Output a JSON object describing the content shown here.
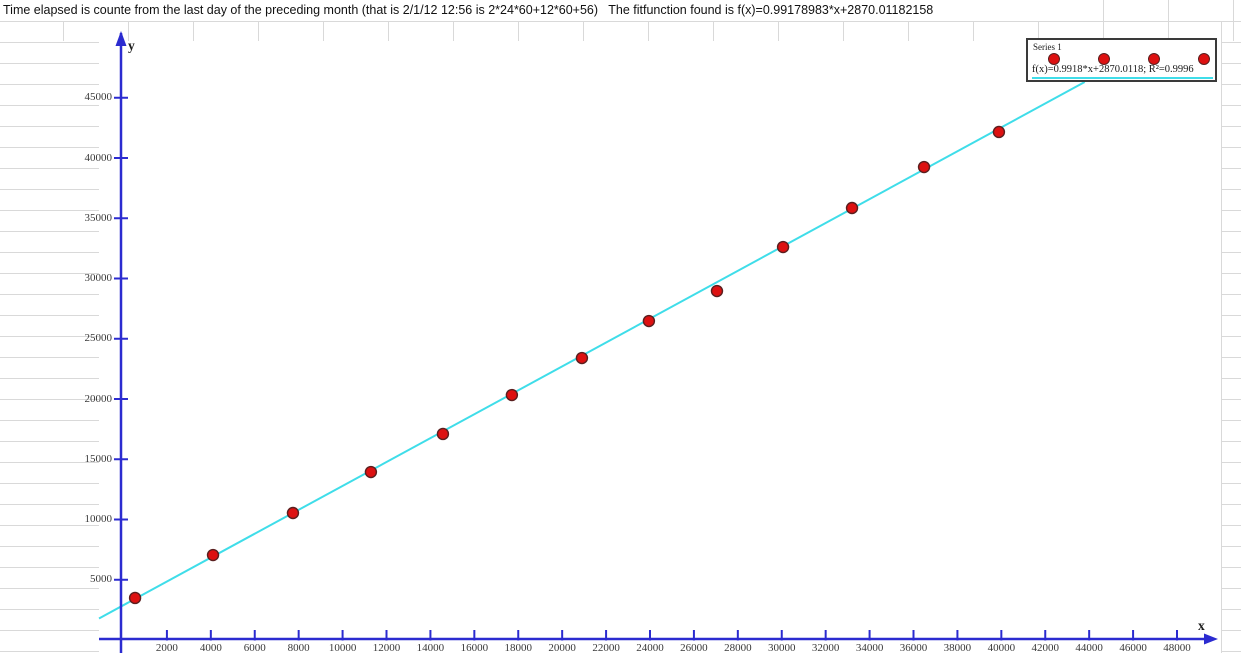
{
  "title": {
    "text": "Time elapsed is counte from the last day of the preceding month (that is 2/1/12 12:56 is 2*24*60+12*60+56)   The fitfunction found is f(x)=0.99178983*x+2870.01182158"
  },
  "legend": {
    "series_label": "Series 1",
    "fit_label": "f(x)=0.9918*x+2870.0118; R²=0.9996"
  },
  "chart_data": {
    "type": "scatter",
    "title": "",
    "xlabel": "x",
    "ylabel": "y",
    "xlim": [
      0,
      49600
    ],
    "ylim": [
      0,
      47500
    ],
    "x_ticks": [
      2000,
      4000,
      6000,
      8000,
      10000,
      12000,
      14000,
      16000,
      18000,
      20000,
      22000,
      24000,
      26000,
      28000,
      30000,
      32000,
      34000,
      36000,
      38000,
      40000,
      42000,
      44000,
      46000,
      48000
    ],
    "y_ticks": [
      5000,
      10000,
      15000,
      20000,
      25000,
      30000,
      35000,
      40000,
      45000
    ],
    "y_tick_labels_clipped_left": true,
    "grid": false,
    "legend_position": "top-right",
    "series": [
      {
        "name": "Series 1",
        "marker": "circle",
        "color": "#dd1111",
        "points": [
          [
            550,
            3490
          ],
          [
            4100,
            7050
          ],
          [
            7740,
            10540
          ],
          [
            11290,
            13940
          ],
          [
            14570,
            17100
          ],
          [
            17710,
            20330
          ],
          [
            20900,
            23400
          ],
          [
            23950,
            26470
          ],
          [
            27050,
            28960
          ],
          [
            30060,
            32610
          ],
          [
            33200,
            35850
          ],
          [
            36480,
            39250
          ],
          [
            39890,
            42160
          ]
        ]
      }
    ],
    "fit": {
      "equation": "f(x)=0.99178983*x+2870.01182158",
      "slope": 0.99178983,
      "intercept": 2870.01182158,
      "r_squared": 0.9996,
      "color": "#3fdde9"
    }
  },
  "colors": {
    "axis": "#2b2bd0",
    "fit_line": "#3fdde9",
    "point_fill": "#dd1111",
    "point_stroke": "#5a1f1f",
    "spreadsheet_gridline": "#d9d9d9"
  }
}
